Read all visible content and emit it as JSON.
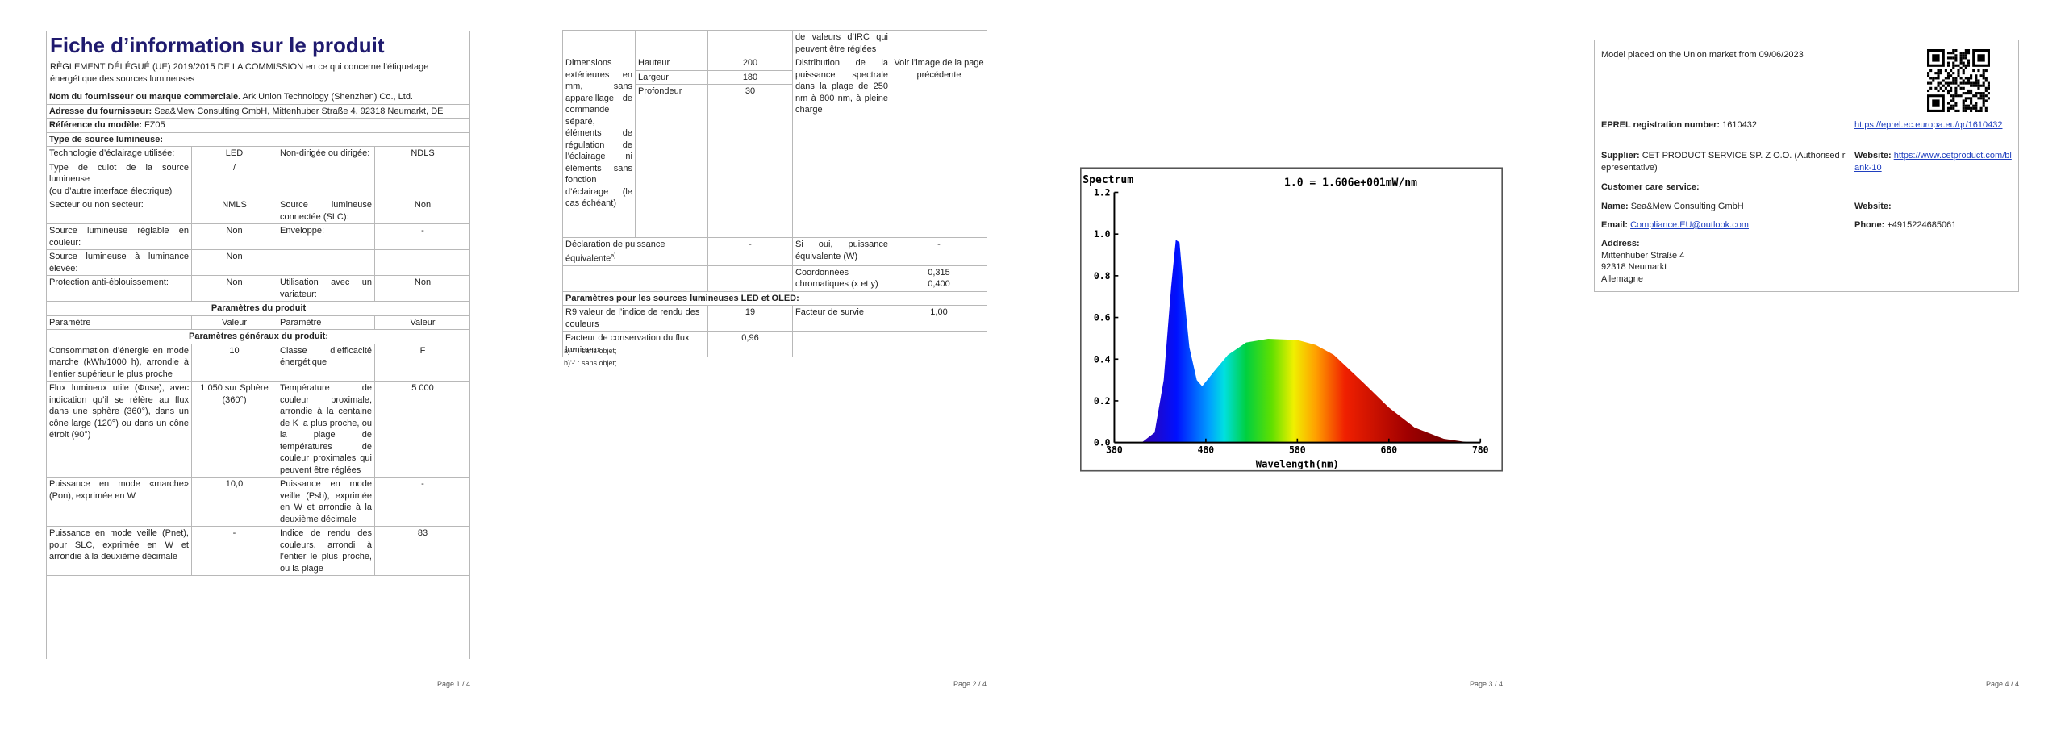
{
  "page1": {
    "title": "Fiche d’information sur le produit",
    "regulation": "RÈGLEMENT DÉLÉGUÉ (UE) 2019/2015 DE LA COMMISSION en ce qui concerne l’étiquetage énergétique des sources lumineuses",
    "rows": [
      {
        "label": "Nom du fournisseur ou marque commerciale.",
        "value": "Ark Union Technology (Shenzhen) Co., Ltd."
      },
      {
        "label": "Adresse du fournisseur:",
        "value": "Sea&Mew Consulting GmbH, Mittenhuber Straße 4, 92318 Neumarkt, DE"
      },
      {
        "label": "Référence du modèle:",
        "value": "FZ05"
      },
      {
        "label": "Type de source lumineuse:"
      },
      {
        "cells": [
          "Technologie d’éclairage utilisée:",
          "LED",
          "Non-dirigée ou dirigée:",
          "NDLS"
        ]
      },
      {
        "cells": [
          "Type de culot de la source lumineuse\n(ou d’autre interface électrique)",
          "/",
          null,
          null
        ]
      },
      {
        "cells": [
          "Secteur ou non secteur:",
          "NMLS",
          "Source lumineuse connectée (SLC):",
          "Non"
        ]
      },
      {
        "cells": [
          "Source lumineuse réglable en couleur:",
          "Non",
          "Enveloppe:",
          "-"
        ]
      },
      {
        "cells": [
          "Source lumineuse à luminance élevée:",
          "Non",
          null,
          null
        ]
      },
      {
        "cells": [
          "Protection anti-éblouissement:",
          "Non",
          "Utilisation avec un variateur:",
          "Non"
        ]
      },
      {
        "section": "Paramètres du produit"
      },
      {
        "cells": [
          "Paramètre",
          "Valeur",
          "Paramètre",
          "Valeur"
        ]
      },
      {
        "section": "Paramètres généraux du produit:"
      },
      {
        "cells": [
          "Consommation d’énergie en mode marche (kWh/1000 h), arrondie à l’entier supérieur le plus proche",
          "10",
          "Classe d’efficacité énergétique",
          "F"
        ]
      },
      {
        "cells": [
          "Flux lumineux utile (Φuse), avec indication qu’il se réfère au flux dans une sphère (360°), dans un cône large (120°) ou dans un cône étroit (90°)",
          "1 050 sur Sphère (360°)",
          "Température de couleur proximale, arrondie à la centaine de K la plus proche, ou la plage de températures de couleur proximales qui peuvent être réglées",
          "5 000"
        ]
      },
      {
        "cells": [
          "Puissance en mode «marche» (Pon), exprimée en W",
          "10,0",
          "Puissance en mode veille (Psb), exprimée en W et arrondie à la deuxième décimale",
          "-"
        ]
      },
      {
        "cells": [
          "Puissance en mode veille (Pnet), pour SLC, exprimée en W et arrondie à la deuxième décimale",
          "-",
          "Indice de rendu des couleurs, arrondi à l’entier le plus proche, ou la plage",
          "83"
        ]
      }
    ],
    "footer": "Page 1 / 4"
  },
  "page2": {
    "continuation": "de valeurs d’IRC qui peuvent être réglées",
    "dimensions": {
      "label": "Dimensions extérieures en mm, sans appareillage de commande séparé, éléments de régulation de l’éclairage ni éléments sans fonction d’éclairage (le cas échéant)",
      "rows": [
        [
          "Hauteur",
          "200"
        ],
        [
          "Largeur",
          "180"
        ],
        [
          "Profondeur",
          "30"
        ]
      ]
    },
    "spectral": "Distribution de la puissance spectrale dans la plage de 250 nm à 800 nm, à pleine charge",
    "spectral_value": "Voir l’image de la page précédente",
    "equiv": [
      "Déclaration de puissance équivalente",
      "-",
      "Si oui, puissance équivalente (W)",
      "-"
    ],
    "equiv_note": "a)",
    "chroma": [
      "Coordonnées chromatiques (x et y)",
      "0,315\n0,400"
    ],
    "led_section": "Paramètres pour les sources lumineuses LED et OLED:",
    "r9": [
      "R9 valeur de l’indice de rendu des couleurs",
      "19",
      "Facteur de survie",
      "1,00"
    ],
    "maint": [
      "Facteur de conservation du flux lumineux",
      "0,96"
    ],
    "notes": [
      "a)'-' : sans objet;",
      "b)'-' : sans objet;"
    ],
    "footer": "Page 2 / 4"
  },
  "page3": {
    "spectrum": {
      "title": "Spectrum",
      "scale": "1.0 = 1.606e+001mW/nm",
      "yticks": [
        "0.0",
        "0.2",
        "0.4",
        "0.6",
        "0.8",
        "1.0",
        "1.2"
      ],
      "xticks": [
        "380",
        "480",
        "580",
        "680",
        "780"
      ],
      "xlabel": "Wavelength(nm)"
    },
    "footer": "Page 3 / 4"
  },
  "page4": {
    "placed": "Model placed on the Union market from 09/06/2023",
    "eprel": {
      "label": "EPREL registration number:",
      "value": "1610432",
      "link": "https://eprel.ec.europa.eu/qr/1610432"
    },
    "supplier": {
      "label": "Supplier:",
      "value": "CET PRODUCT SERVICE SP. Z O.O. (Authorised representative)",
      "web_label": "Website:",
      "web": "https://www.cetproduct.com/blank-10"
    },
    "care": "Customer care service:",
    "name": {
      "label": "Name:",
      "value": "Sea&Mew Consulting GmbH",
      "web_label": "Website:"
    },
    "email": {
      "label": "Email:",
      "value": "Compliance.EU@outlook.com",
      "phone_label": "Phone:",
      "phone": "+4915224685061"
    },
    "address": {
      "label": "Address:",
      "lines": [
        "Mittenhuber Straße 4",
        "92318 Neumarkt",
        "Allemagne"
      ]
    },
    "footer": "Page 4 / 4"
  }
}
